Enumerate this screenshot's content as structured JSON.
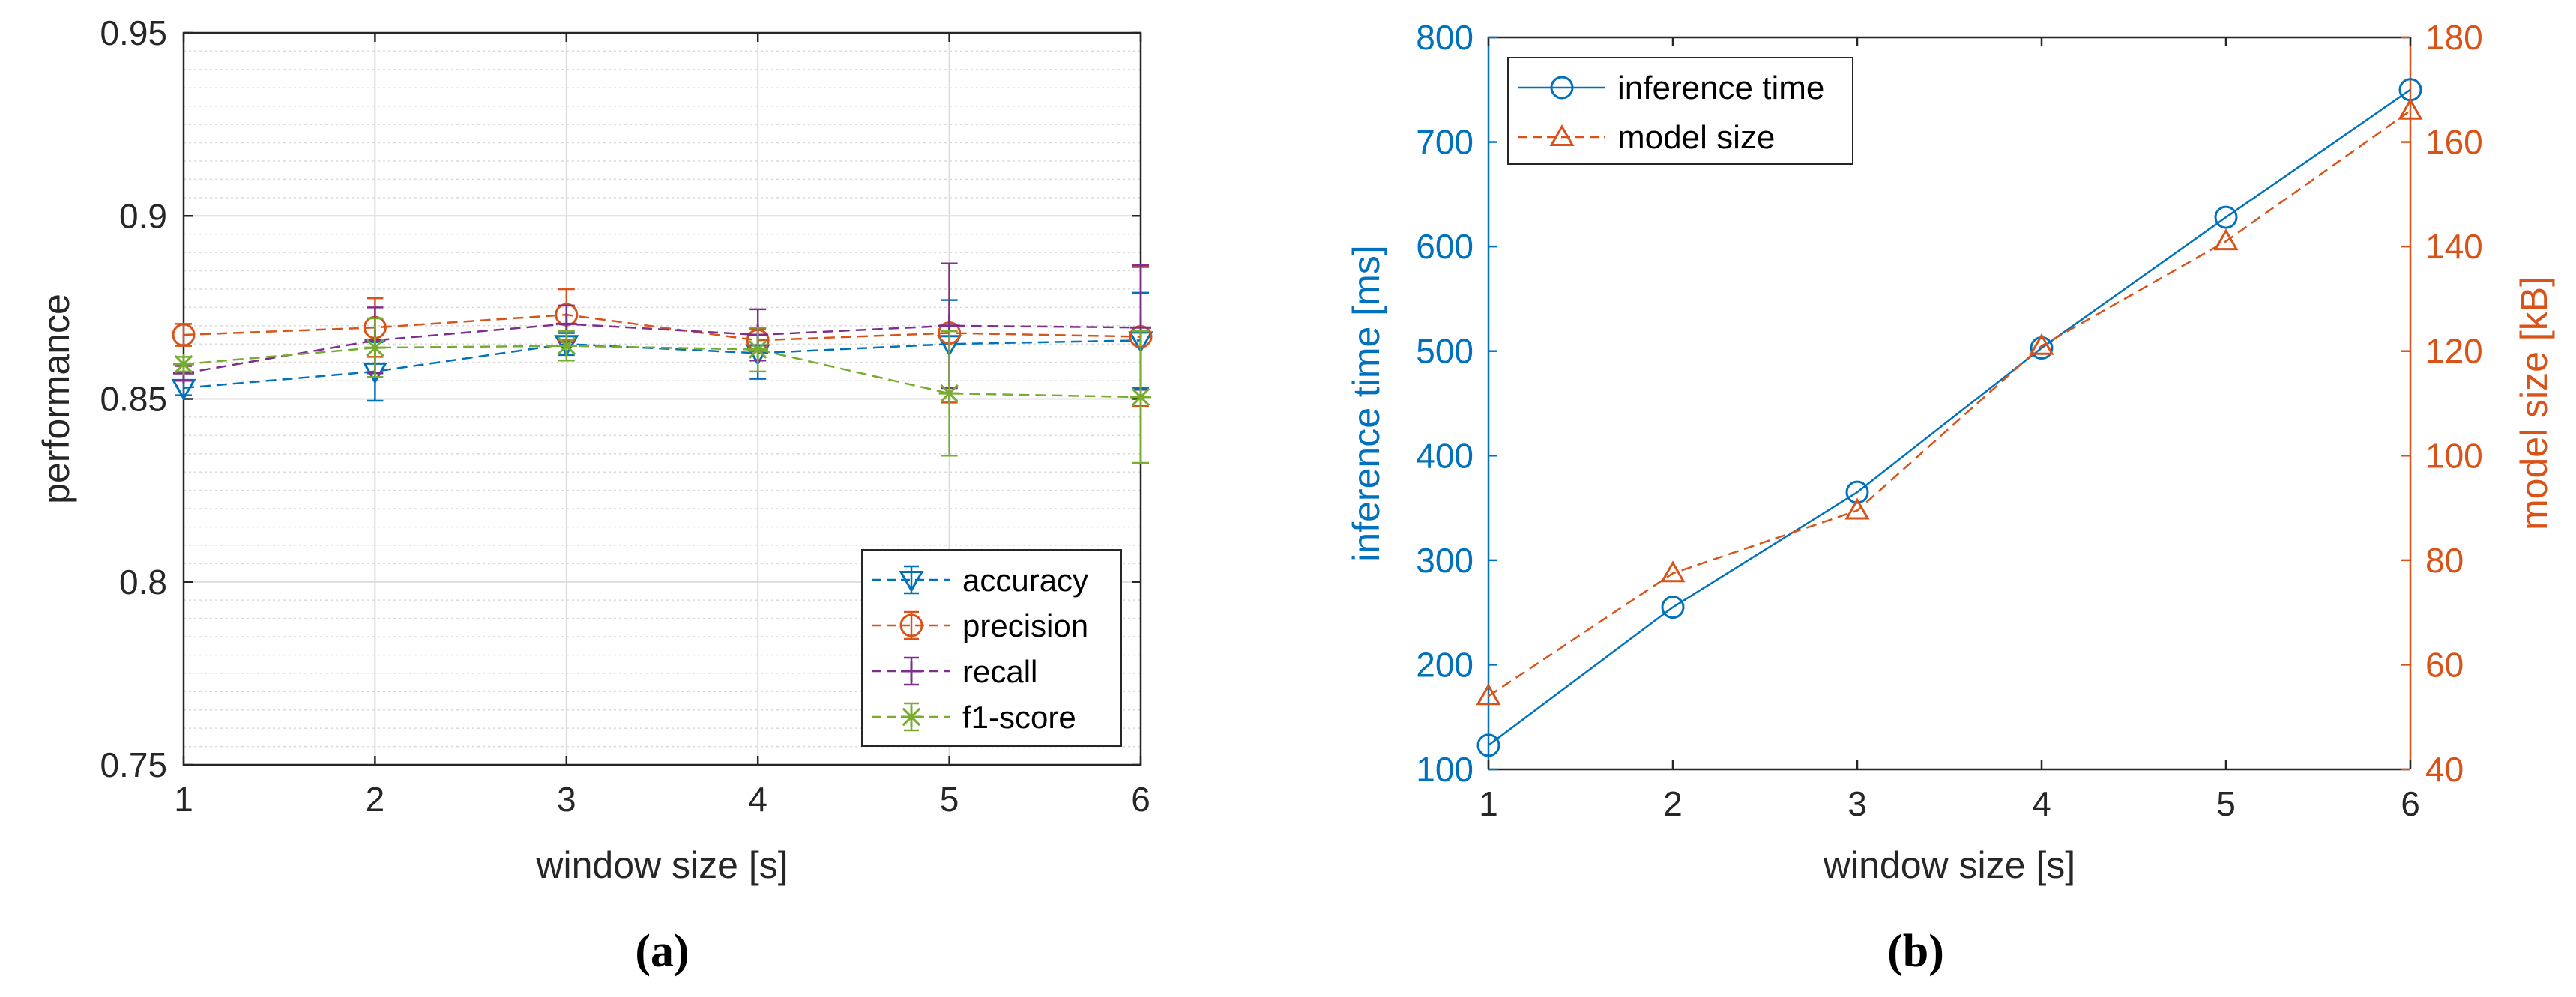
{
  "chart_data": [
    {
      "id": "a",
      "type": "line",
      "caption": "(a)",
      "xlabel": "window size [s]",
      "ylabel": "performance",
      "xlim": [
        1,
        6
      ],
      "ylim": [
        0.75,
        0.95
      ],
      "x_ticks": [
        "1",
        "2",
        "3",
        "4",
        "5",
        "6"
      ],
      "y_ticks": [
        "0.75",
        "0.8",
        "0.85",
        "0.9",
        "0.95"
      ],
      "grid": true,
      "minor_grid": true,
      "legend_position": "bottom-right",
      "x": [
        1,
        2,
        3,
        4,
        5,
        6
      ],
      "series": [
        {
          "name": "accuracy",
          "color": "#0072BD",
          "marker": "triangle-down",
          "values": [
            0.853,
            0.8575,
            0.865,
            0.8625,
            0.865,
            0.866
          ],
          "errors": [
            0.002,
            0.008,
            0.003,
            0.007,
            0.012,
            0.013
          ]
        },
        {
          "name": "precision",
          "color": "#D95319",
          "marker": "circle",
          "values": [
            0.8675,
            0.8695,
            0.873,
            0.866,
            0.868,
            0.867
          ],
          "errors": [
            0.003,
            0.008,
            0.007,
            0.003,
            0.019,
            0.019
          ]
        },
        {
          "name": "recall",
          "color": "#7E2F8E",
          "marker": "plus",
          "values": [
            0.857,
            0.866,
            0.8705,
            0.8675,
            0.87,
            0.8695
          ],
          "errors": [
            0.002,
            0.009,
            0.005,
            0.007,
            0.017,
            0.017
          ]
        },
        {
          "name": "f1-score",
          "color": "#77AC30",
          "marker": "asterisk",
          "values": [
            0.8595,
            0.864,
            0.8645,
            0.8635,
            0.8515,
            0.8505
          ],
          "errors": [
            0.002,
            0.008,
            0.004,
            0.006,
            0.017,
            0.018
          ]
        }
      ]
    },
    {
      "id": "b",
      "type": "line",
      "caption": "(b)",
      "xlabel": "window size [s]",
      "xlim": [
        1,
        6
      ],
      "x_ticks": [
        "1",
        "2",
        "3",
        "4",
        "5",
        "6"
      ],
      "grid": false,
      "legend_position": "top-left",
      "x": [
        1,
        2,
        3,
        4,
        5,
        6
      ],
      "left_axis": {
        "label": "inference time [ms]",
        "color": "#0072BD",
        "ylim": [
          100,
          800
        ],
        "ticks": [
          "100",
          "200",
          "300",
          "400",
          "500",
          "600",
          "700",
          "800"
        ]
      },
      "right_axis": {
        "label": "model size [kB]",
        "color": "#D95319",
        "ylim": [
          40,
          180
        ],
        "ticks": [
          "40",
          "60",
          "80",
          "100",
          "120",
          "140",
          "160",
          "180"
        ]
      },
      "series": [
        {
          "name": "inference time",
          "axis": "left",
          "color": "#0072BD",
          "marker": "circle",
          "line": "solid",
          "values": [
            123,
            255,
            365,
            503,
            628,
            750
          ]
        },
        {
          "name": "model size",
          "axis": "right",
          "color": "#D95319",
          "marker": "triangle-up",
          "line": "dashed",
          "values": [
            54,
            77.5,
            89.5,
            121,
            141,
            166
          ]
        }
      ]
    }
  ]
}
